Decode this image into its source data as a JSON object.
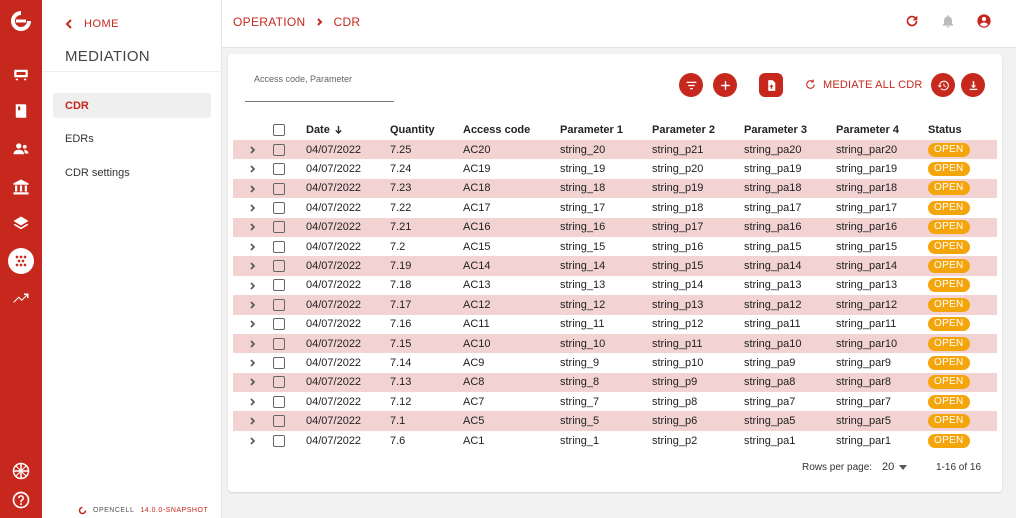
{
  "rail": {
    "icons": [
      "opencell-logo-icon",
      "tariffs-icon",
      "catalog-icon",
      "customers-icon",
      "finance-icon",
      "layers-icon",
      "mediation-icon",
      "analytics-icon",
      "language-icon",
      "help-icon"
    ]
  },
  "sidebar": {
    "home_label": "HOME",
    "title": "MEDIATION",
    "items": [
      {
        "label": "CDR",
        "active": true
      },
      {
        "label": "EDRs",
        "active": false
      },
      {
        "label": "CDR settings",
        "active": false
      }
    ],
    "footer_brand": "OPENCELL",
    "footer_version": "14.0.0-SNAPSHOT"
  },
  "breadcrumb": {
    "parent": "OPERATION",
    "current": "CDR"
  },
  "toolbar": {
    "search_placeholder": "Access code, Parameter",
    "mediate_label": "MEDIATE ALL CDR"
  },
  "table": {
    "headers": {
      "date": "Date",
      "quantity": "Quantity",
      "access_code": "Access code",
      "param1": "Parameter 1",
      "param2": "Parameter 2",
      "param3": "Parameter 3",
      "param4": "Parameter 4",
      "status": "Status"
    },
    "rows": [
      {
        "date": "04/07/2022",
        "quantity": "7.25",
        "access_code": "AC20",
        "p1": "string_20",
        "p2": "string_p21",
        "p3": "string_pa20",
        "p4": "string_par20",
        "status": "OPEN"
      },
      {
        "date": "04/07/2022",
        "quantity": "7.24",
        "access_code": "AC19",
        "p1": "string_19",
        "p2": "string_p20",
        "p3": "string_pa19",
        "p4": "string_par19",
        "status": "OPEN"
      },
      {
        "date": "04/07/2022",
        "quantity": "7.23",
        "access_code": "AC18",
        "p1": "string_18",
        "p2": "string_p19",
        "p3": "string_pa18",
        "p4": "string_par18",
        "status": "OPEN"
      },
      {
        "date": "04/07/2022",
        "quantity": "7.22",
        "access_code": "AC17",
        "p1": "string_17",
        "p2": "string_p18",
        "p3": "string_pa17",
        "p4": "string_par17",
        "status": "OPEN"
      },
      {
        "date": "04/07/2022",
        "quantity": "7.21",
        "access_code": "AC16",
        "p1": "string_16",
        "p2": "string_p17",
        "p3": "string_pa16",
        "p4": "string_par16",
        "status": "OPEN"
      },
      {
        "date": "04/07/2022",
        "quantity": "7.2",
        "access_code": "AC15",
        "p1": "string_15",
        "p2": "string_p16",
        "p3": "string_pa15",
        "p4": "string_par15",
        "status": "OPEN"
      },
      {
        "date": "04/07/2022",
        "quantity": "7.19",
        "access_code": "AC14",
        "p1": "string_14",
        "p2": "string_p15",
        "p3": "string_pa14",
        "p4": "string_par14",
        "status": "OPEN"
      },
      {
        "date": "04/07/2022",
        "quantity": "7.18",
        "access_code": "AC13",
        "p1": "string_13",
        "p2": "string_p14",
        "p3": "string_pa13",
        "p4": "string_par13",
        "status": "OPEN"
      },
      {
        "date": "04/07/2022",
        "quantity": "7.17",
        "access_code": "AC12",
        "p1": "string_12",
        "p2": "string_p13",
        "p3": "string_pa12",
        "p4": "string_par12",
        "status": "OPEN"
      },
      {
        "date": "04/07/2022",
        "quantity": "7.16",
        "access_code": "AC11",
        "p1": "string_11",
        "p2": "string_p12",
        "p3": "string_pa11",
        "p4": "string_par11",
        "status": "OPEN"
      },
      {
        "date": "04/07/2022",
        "quantity": "7.15",
        "access_code": "AC10",
        "p1": "string_10",
        "p2": "string_p11",
        "p3": "string_pa10",
        "p4": "string_par10",
        "status": "OPEN"
      },
      {
        "date": "04/07/2022",
        "quantity": "7.14",
        "access_code": "AC9",
        "p1": "string_9",
        "p2": "string_p10",
        "p3": "string_pa9",
        "p4": "string_par9",
        "status": "OPEN"
      },
      {
        "date": "04/07/2022",
        "quantity": "7.13",
        "access_code": "AC8",
        "p1": "string_8",
        "p2": "string_p9",
        "p3": "string_pa8",
        "p4": "string_par8",
        "status": "OPEN"
      },
      {
        "date": "04/07/2022",
        "quantity": "7.12",
        "access_code": "AC7",
        "p1": "string_7",
        "p2": "string_p8",
        "p3": "string_pa7",
        "p4": "string_par7",
        "status": "OPEN"
      },
      {
        "date": "04/07/2022",
        "quantity": "7.1",
        "access_code": "AC5",
        "p1": "string_5",
        "p2": "string_p6",
        "p3": "string_pa5",
        "p4": "string_par5",
        "status": "OPEN"
      },
      {
        "date": "04/07/2022",
        "quantity": "7.6",
        "access_code": "AC1",
        "p1": "string_1",
        "p2": "string_p2",
        "p3": "string_pa1",
        "p4": "string_par1",
        "status": "OPEN"
      }
    ]
  },
  "pagination": {
    "rows_per_page_label": "Rows per page:",
    "rows_per_page_value": "20",
    "range": "1-16 of 16"
  },
  "colors": {
    "brand": "#c6281e",
    "row_highlight": "#f2d3d2",
    "status_open": "#f3a50b"
  }
}
